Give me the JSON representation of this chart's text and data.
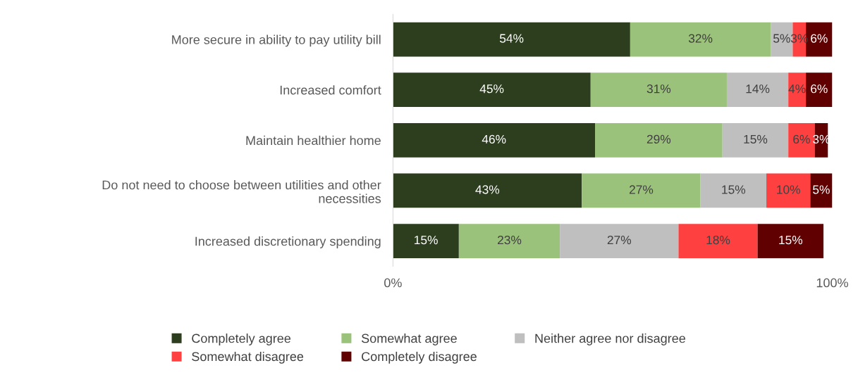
{
  "chart_data": {
    "type": "bar",
    "orientation": "horizontal",
    "stacked": true,
    "categories": [
      "More secure in ability to pay utility bill",
      "Increased comfort",
      "Maintain healthier home",
      "Do not need to choose between utilities and other\nnecessities",
      "Increased discretionary spending"
    ],
    "series": [
      {
        "name": "Completely agree",
        "color": "#2d3e1f",
        "values": [
          54,
          45,
          46,
          43,
          15
        ],
        "value_labels": [
          "54%",
          "45%",
          "46%",
          "43%",
          "15%"
        ]
      },
      {
        "name": "Somewhat agree",
        "color": "#9bc27a",
        "values": [
          32,
          31,
          29,
          27,
          23
        ],
        "value_labels": [
          "32%",
          "31%",
          "29%",
          "27%",
          "23%"
        ]
      },
      {
        "name": "Neither agree nor disagree",
        "color": "#bfbfbf",
        "values": [
          5,
          14,
          15,
          15,
          27
        ],
        "value_labels": [
          "5%",
          "14%",
          "15%",
          "15%",
          "27%"
        ]
      },
      {
        "name": "Somewhat disagree",
        "color": "#ff4040",
        "values": [
          3,
          4,
          6,
          10,
          18
        ],
        "value_labels": [
          "3%",
          "4%",
          "6%",
          "10%",
          "18%"
        ]
      },
      {
        "name": "Completely disagree",
        "color": "#600000",
        "values": [
          6,
          6,
          3,
          5,
          15
        ],
        "value_labels": [
          "6%",
          "6%",
          "3%",
          "5%",
          "15%"
        ]
      }
    ],
    "xlim": [
      0,
      100
    ],
    "xticks": [
      {
        "value": 0,
        "label": "0%"
      },
      {
        "value": 100,
        "label": "100%"
      }
    ],
    "grid": false,
    "legend": "bottom"
  }
}
